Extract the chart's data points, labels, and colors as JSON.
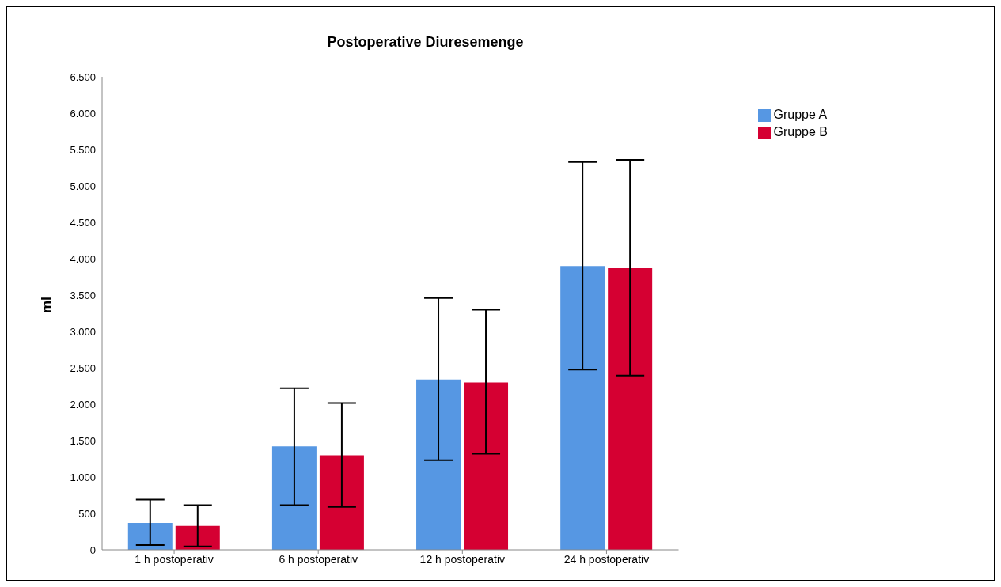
{
  "chart_data": {
    "type": "bar",
    "title": "Postoperative Diuresemenge",
    "ylabel": "ml",
    "categories": [
      "1 h postoperativ",
      "6 h postoperativ",
      "12 h postoperativ",
      "24 h postoperativ"
    ],
    "series": [
      {
        "name": "Gruppe A",
        "color": "#5697e3",
        "values": [
          370,
          1420,
          2340,
          3900
        ],
        "errors": [
          [
            65,
            690
          ],
          [
            615,
            2220
          ],
          [
            1230,
            3460
          ],
          [
            2475,
            5330
          ]
        ]
      },
      {
        "name": "Gruppe B",
        "color": "#d50032",
        "values": [
          330,
          1300,
          2300,
          3870
        ],
        "errors": [
          [
            45,
            615
          ],
          [
            590,
            2015
          ],
          [
            1320,
            3300
          ],
          [
            2395,
            5360
          ]
        ]
      }
    ],
    "ylim": [
      0,
      6500
    ],
    "yticks": [
      0,
      500,
      {
        "value": 1000,
        "label": "1.000"
      },
      {
        "value": 1500,
        "label": "1.500"
      },
      {
        "value": 2000,
        "label": "2.000"
      },
      {
        "value": 2500,
        "label": "2.500"
      },
      {
        "value": 3000,
        "label": "3.000"
      },
      {
        "value": 3500,
        "label": "3.500"
      },
      {
        "value": 4000,
        "label": "4.000"
      },
      {
        "value": 4500,
        "label": "4.500"
      },
      {
        "value": 5000,
        "label": "5.000"
      },
      {
        "value": 5500,
        "label": "5.500"
      },
      {
        "value": 6000,
        "label": "6.000"
      },
      {
        "value": 6500,
        "label": "6.500"
      }
    ],
    "grid": false,
    "legend": "top right"
  }
}
